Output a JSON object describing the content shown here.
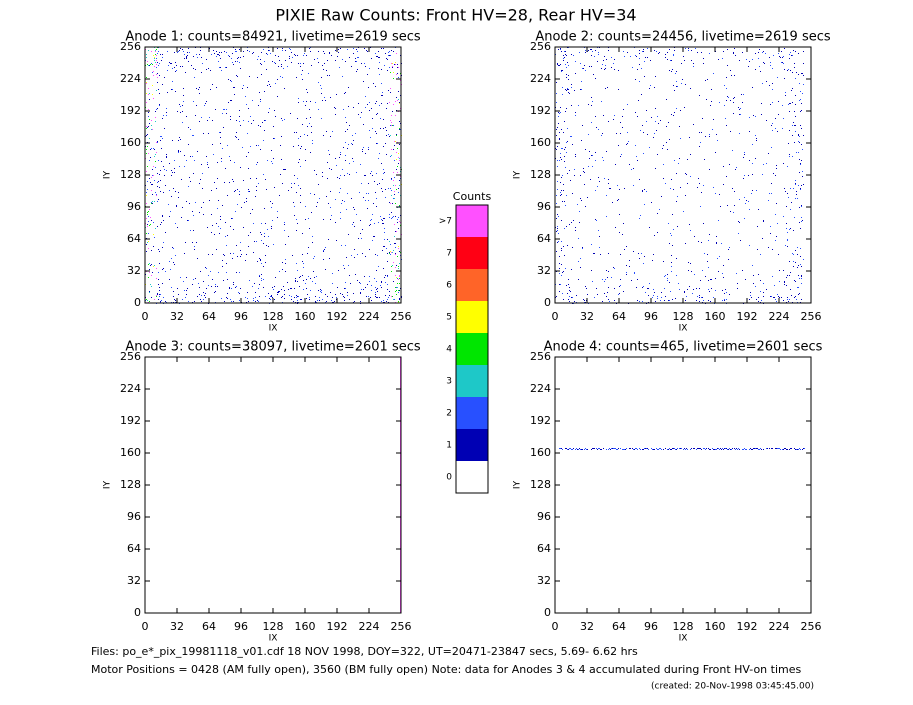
{
  "title": "PIXIE Raw Counts:  Front HV=28, Rear HV=34",
  "panels": [
    {
      "type": "heatmap",
      "title": "Anode 1: counts=84921, livetime=2619 secs",
      "xlabel": "IX",
      "ylabel": "IY",
      "xlim": [
        0,
        256
      ],
      "ylim": [
        0,
        256
      ],
      "xticks": [
        0,
        32,
        64,
        96,
        128,
        160,
        192,
        224,
        256
      ],
      "yticks": [
        0,
        32,
        64,
        96,
        128,
        160,
        192,
        224,
        256
      ]
    },
    {
      "type": "heatmap",
      "title": "Anode 2: counts=24456, livetime=2619 secs",
      "xlabel": "IX",
      "ylabel": "IY",
      "xlim": [
        0,
        256
      ],
      "ylim": [
        0,
        256
      ],
      "xticks": [
        0,
        32,
        64,
        96,
        128,
        160,
        192,
        224,
        256
      ],
      "yticks": [
        0,
        32,
        64,
        96,
        128,
        160,
        192,
        224,
        256
      ]
    },
    {
      "type": "heatmap",
      "title": "Anode 3: counts=38097, livetime=2601 secs",
      "xlabel": "IX",
      "ylabel": "IY",
      "xlim": [
        0,
        256
      ],
      "ylim": [
        0,
        256
      ],
      "xticks": [
        0,
        32,
        64,
        96,
        128,
        160,
        192,
        224,
        256
      ],
      "yticks": [
        0,
        32,
        64,
        96,
        128,
        160,
        192,
        224,
        256
      ]
    },
    {
      "type": "heatmap",
      "title": "Anode 4: counts=465, livetime=2601 secs",
      "xlabel": "IX",
      "ylabel": "IY",
      "xlim": [
        0,
        256
      ],
      "ylim": [
        0,
        256
      ],
      "xticks": [
        0,
        32,
        64,
        96,
        128,
        160,
        192,
        224,
        256
      ],
      "yticks": [
        0,
        32,
        64,
        96,
        128,
        160,
        192,
        224,
        256
      ]
    }
  ],
  "colorbar": {
    "title": "Counts",
    "levels": [
      {
        "label": "0",
        "color": "#ffffff"
      },
      {
        "label": "1",
        "color": "#0000b4"
      },
      {
        "label": "2",
        "color": "#2850ff"
      },
      {
        "label": "3",
        "color": "#1ec8c8"
      },
      {
        "label": "4",
        "color": "#00e600"
      },
      {
        "label": "5",
        "color": "#ffff00"
      },
      {
        "label": "6",
        "color": "#ff6428"
      },
      {
        "label": "7",
        "color": "#ff0014"
      },
      {
        "label": ">7",
        "color": "#ff50ff"
      }
    ]
  },
  "footer": [
    "Files: po_e*_pix_19981118_v01.cdf    18 NOV 1998, DOY=322, UT=20471-23847 secs,  5.69- 6.62 hrs",
    "Motor Positions = 0428 (AM fully open), 3560 (BM fully open)    Note: data for Anodes 3 & 4 accumulated during Front HV-on times",
    "(created: 20-Nov-1998 03:45:45.00)"
  ]
}
